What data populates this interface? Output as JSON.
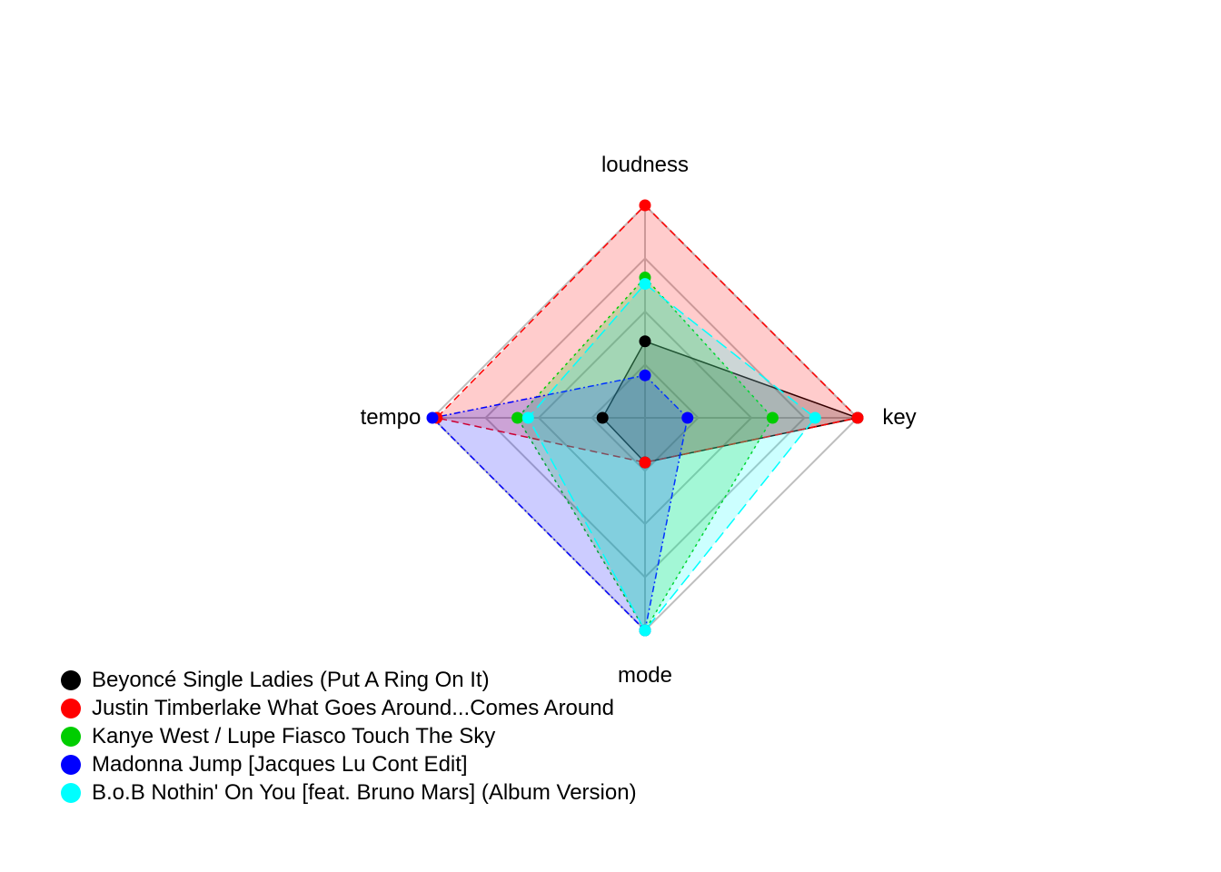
{
  "chart_data": {
    "type": "radar",
    "axes": [
      "loudness",
      "key",
      "mode",
      "tempo"
    ],
    "range": [
      0,
      1
    ],
    "grid": true,
    "grid_levels": 4,
    "legend_position": "bottom-left",
    "series": [
      {
        "name": "Beyoncé Single Ladies (Put A Ring On It)",
        "color": "#000000",
        "values": [
          0.36,
          1.0,
          0.21,
          0.2
        ]
      },
      {
        "name": "Justin Timberlake What Goes Around...Comes Around",
        "color": "#ff0000",
        "values": [
          1.0,
          1.0,
          0.21,
          0.98
        ]
      },
      {
        "name": "Kanye West / Lupe Fiasco Touch The Sky",
        "color": "#00cd00",
        "values": [
          0.66,
          0.6,
          1.0,
          0.6
        ]
      },
      {
        "name": "Madonna Jump [Jacques Lu Cont Edit]",
        "color": "#0000ff",
        "values": [
          0.2,
          0.2,
          1.0,
          1.0
        ]
      },
      {
        "name": "B.o.B Nothin' On You [feat. Bruno Mars] (Album Version)",
        "color": "#00ffff",
        "values": [
          0.63,
          0.8,
          1.0,
          0.55
        ]
      }
    ]
  }
}
